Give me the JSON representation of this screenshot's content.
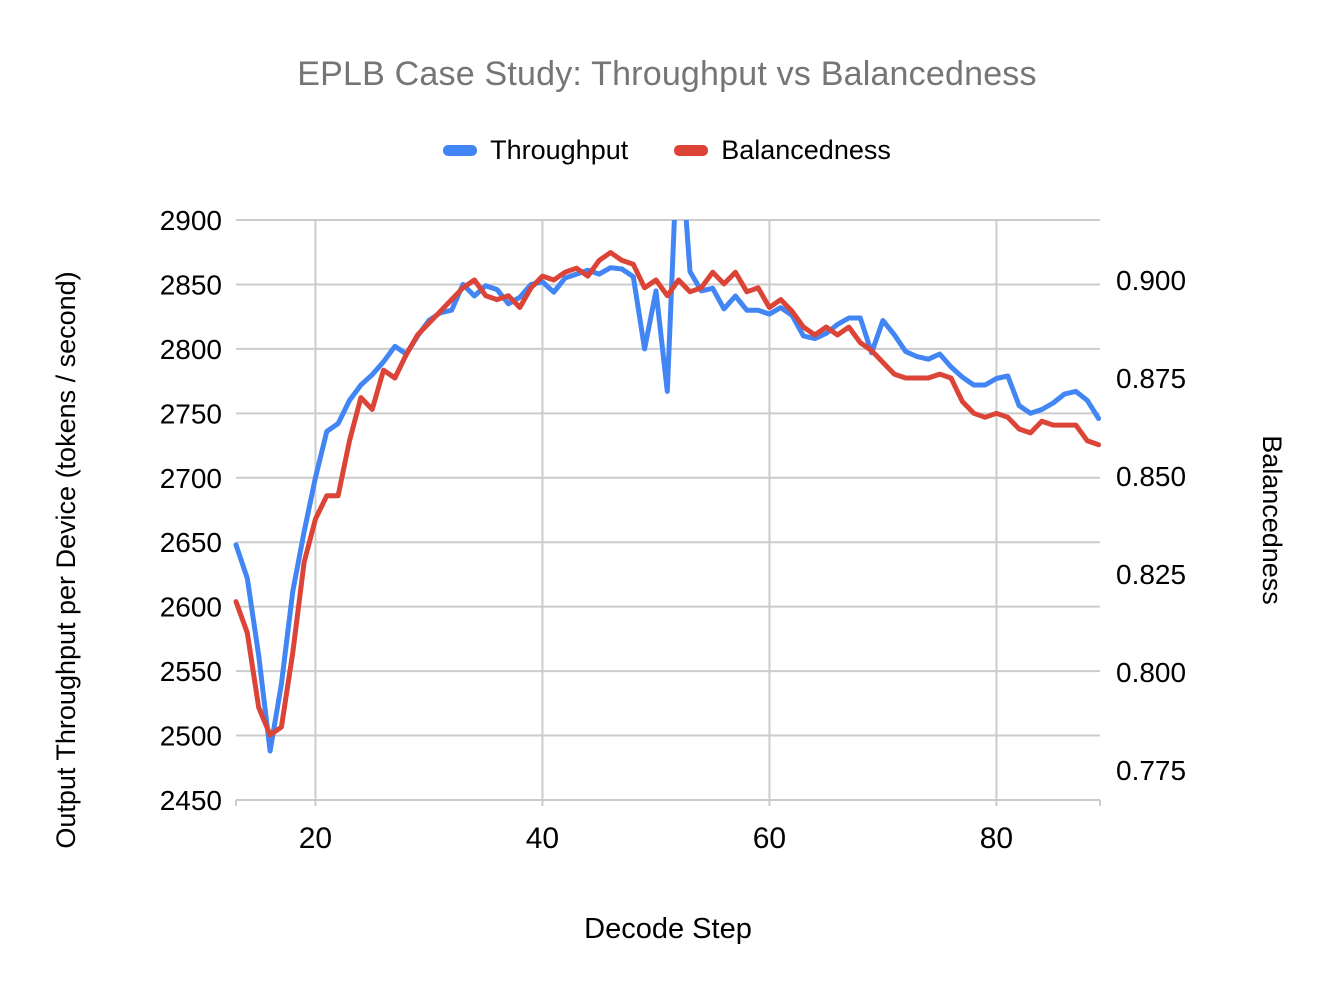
{
  "title": "EPLB Case Study: Throughput vs Balancedness",
  "legend": {
    "items": [
      {
        "label": "Throughput",
        "color": "#4285F4"
      },
      {
        "label": "Balancedness",
        "color": "#DB4437"
      }
    ]
  },
  "colors": {
    "throughput_line": "#4285F4",
    "balancedness_line": "#DB4437",
    "gridline": "#cccccc",
    "title_text": "#757575",
    "axis_text": "#000000"
  },
  "chart_data": {
    "type": "line",
    "title": "EPLB Case Study: Throughput vs Balancedness",
    "xlabel": "Decode Step",
    "ylabel_left": "Output Throughput per Device (tokens / second)",
    "ylabel_right": "Balancedness",
    "grid": true,
    "legend_position": "top",
    "x_ticks": [
      20,
      40,
      60,
      80
    ],
    "left_axis": {
      "min": 2450,
      "max": 2900,
      "tick_step": 50,
      "tick_labels": [
        "2900",
        "2850",
        "2800",
        "2750",
        "2700",
        "2650",
        "2600",
        "2550",
        "2500",
        "2450"
      ]
    },
    "right_axis": {
      "tick_labels": [
        "0.900",
        "0.875",
        "0.850",
        "0.825",
        "0.800",
        "0.775"
      ],
      "tick_values": [
        0.9,
        0.875,
        0.85,
        0.825,
        0.8,
        0.775
      ],
      "value_at_plot_top": 0.9153,
      "value_at_plot_bottom": 0.7674
    },
    "x": [
      13,
      14,
      15,
      16,
      17,
      18,
      19,
      20,
      21,
      22,
      23,
      24,
      25,
      26,
      27,
      28,
      29,
      30,
      31,
      32,
      33,
      34,
      35,
      36,
      37,
      38,
      39,
      40,
      41,
      42,
      43,
      44,
      45,
      46,
      47,
      48,
      49,
      50,
      51,
      52,
      53,
      54,
      55,
      56,
      57,
      58,
      59,
      60,
      61,
      62,
      63,
      64,
      65,
      66,
      67,
      68,
      69,
      70,
      71,
      72,
      73,
      74,
      75,
      76,
      77,
      78,
      79,
      80,
      81,
      82,
      83,
      84,
      85,
      86,
      87,
      88,
      89
    ],
    "series": [
      {
        "name": "Throughput",
        "axis": "left",
        "color": "#4285F4",
        "values": [
          2648,
          2622,
          2562,
          2488,
          2540,
          2612,
          2658,
          2700,
          2736,
          2742,
          2760,
          2772,
          2780,
          2790,
          2802,
          2796,
          2810,
          2822,
          2828,
          2830,
          2850,
          2841,
          2849,
          2846,
          2835,
          2840,
          2850,
          2852,
          2844,
          2855,
          2858,
          2861,
          2858,
          2863,
          2862,
          2856,
          2800,
          2845,
          2767,
          2980,
          2860,
          2845,
          2847,
          2831,
          2841,
          2830,
          2830,
          2827,
          2832,
          2826,
          2810,
          2808,
          2812,
          2819,
          2824,
          2824,
          2797,
          2822,
          2811,
          2798,
          2794,
          2792,
          2796,
          2786,
          2778,
          2772,
          2772,
          2777,
          2779,
          2756,
          2750,
          2753,
          2758,
          2765,
          2767,
          2760,
          2746
        ]
      },
      {
        "name": "Balancedness",
        "axis": "right",
        "color": "#DB4437",
        "values": [
          0.818,
          0.81,
          0.791,
          0.784,
          0.786,
          0.805,
          0.828,
          0.839,
          0.845,
          0.845,
          0.859,
          0.87,
          0.867,
          0.877,
          0.875,
          0.881,
          0.886,
          0.889,
          0.892,
          0.895,
          0.898,
          0.9,
          0.896,
          0.895,
          0.896,
          0.893,
          0.898,
          0.901,
          0.9,
          0.902,
          0.903,
          0.901,
          0.905,
          0.907,
          0.905,
          0.904,
          0.898,
          0.9,
          0.896,
          0.9,
          0.897,
          0.898,
          0.902,
          0.899,
          0.902,
          0.897,
          0.898,
          0.893,
          0.895,
          0.892,
          0.888,
          0.886,
          0.888,
          0.886,
          0.888,
          0.884,
          0.882,
          0.879,
          0.876,
          0.875,
          0.875,
          0.875,
          0.876,
          0.875,
          0.869,
          0.866,
          0.865,
          0.866,
          0.865,
          0.862,
          0.861,
          0.864,
          0.863,
          0.863,
          0.863,
          0.859,
          0.858
        ]
      }
    ]
  }
}
